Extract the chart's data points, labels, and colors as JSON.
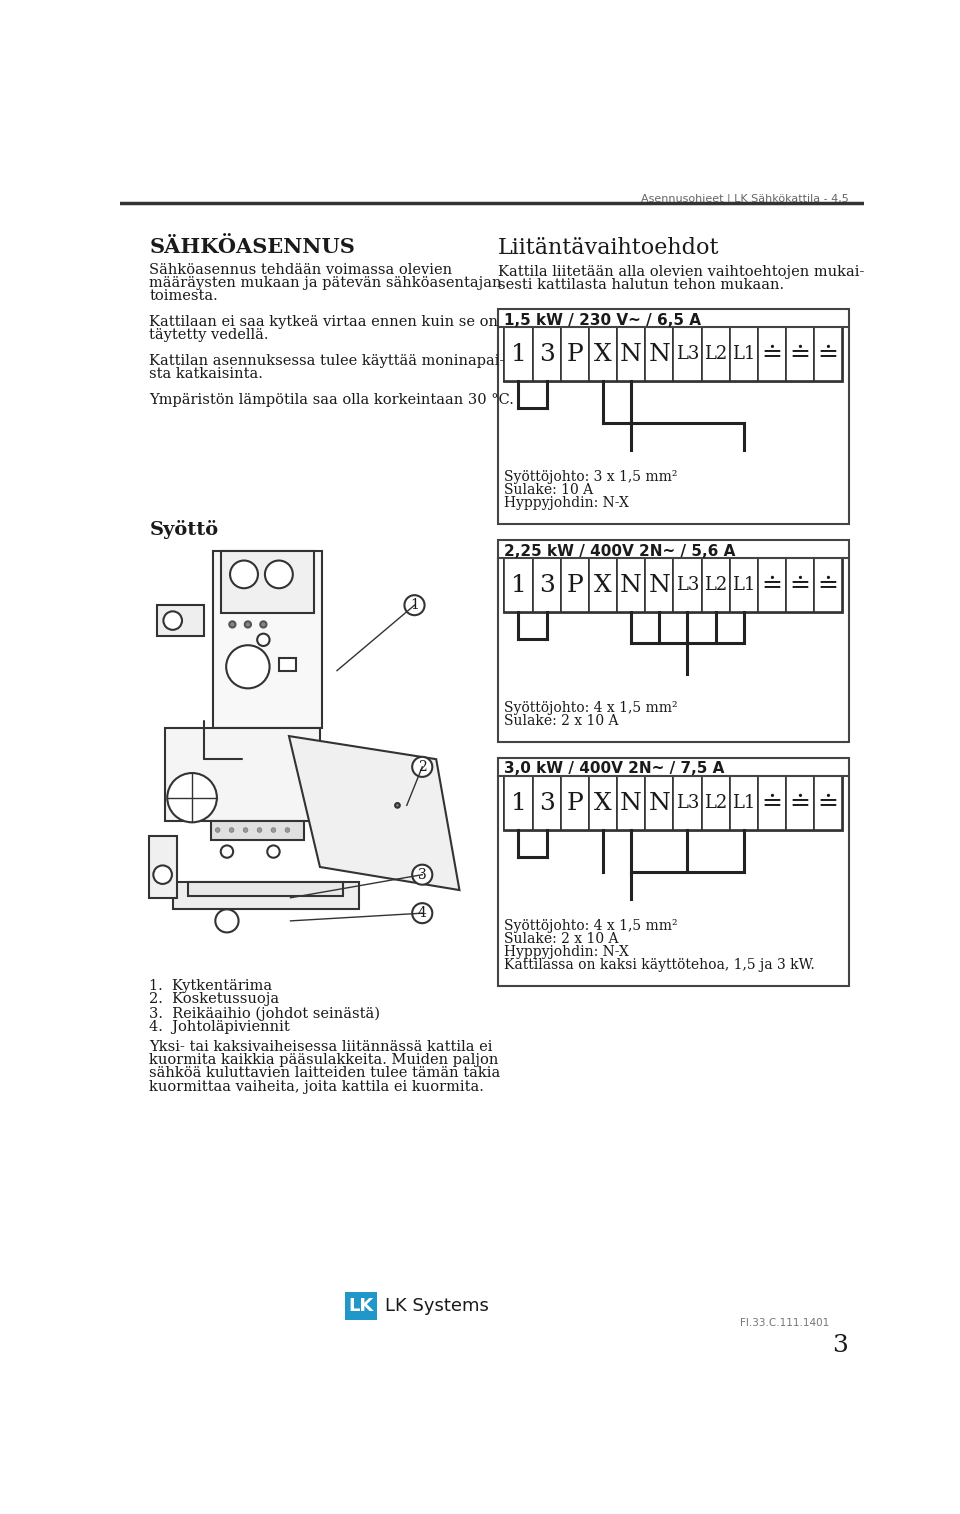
{
  "header_text": "Asennusohjeet | LK Sähkökattila - 4,5",
  "page_number": "3",
  "footer_code": "FI.33.C.111.1401",
  "bg_color": "#ffffff",
  "text_color": "#1a1a1a",
  "lk_blue": "#2196c8",
  "section1_title": "SÄHKÖASENNUS",
  "section1_lines": [
    "Sähköasennus tehdään voimassa olevien",
    "määräysten mukaan ja pätevän sähköasentajan",
    "toimesta.",
    "",
    "Kattilaan ei saa kytkeä virtaa ennen kuin se on",
    "täytetty vedellä.",
    "",
    "Kattilan asennuksessa tulee käyttää moninapai-",
    "sta katkaisinta.",
    "",
    "Ympäristön lämpötila saa olla korkeintaan 30 °C."
  ],
  "syotto_title": "Syöttö",
  "list_items": [
    "1.  Kytkentärima",
    "2.  Kosketussuoja",
    "3.  Reikäaihio (johdot seinästä)",
    "4.  Johto läpiviennit"
  ],
  "list_items_clean": [
    "1.  Kytkentärima",
    "2.  Kosketussuoja",
    "3.  Reikäaihio (johdot seinästä)",
    "4.  Johto läpiviennit"
  ],
  "bottom_lines": [
    "Yksi- tai kaksivaiheisessa liitännässä kattila ei",
    "kuormita kaikkia pääsulakkeita. Muiden paljon",
    "sähköä kuluttavien laitteiden tulee tämän takia",
    "kuormittaa vaiheita, joita kattila ei kuormita."
  ],
  "section2_title": "Liitäntävaihtoehdot",
  "section2_lines": [
    "Kattila liitetään alla olevien vaihtoehtojen mukai-",
    "sesti kattilasta halutun tehon mukaan."
  ],
  "box1_label": "1,5 kW / 230 V~ / 6,5 A",
  "box2_label": "2,25 kW / 400V 2N~ / 5,6 A",
  "box3_label": "3,0 kW / 400V 2N~ / 7,5 A",
  "terminal_labels": [
    "1",
    "3",
    "P",
    "X",
    "N",
    "N",
    "L3",
    "L2",
    "L1",
    "≡",
    "≡",
    "≡"
  ],
  "box1_info": [
    "Syöttöjohto: 3 x 1,5 mm²",
    "Sulake: 10 A",
    "Hyppyjohdin: N-X"
  ],
  "box2_info": [
    "Syöttöjohto: 4 x 1,5 mm²",
    "Sulake: 2 x 10 A"
  ],
  "box3_info": [
    "Syöttöjohto: 4 x 1,5 mm²",
    "Sulake: 2 x 10 A",
    "Hyppyjohdin: N-X",
    "Kattilassa on kaksi käyttötehoa, 1,5 ja 3 kW."
  ]
}
